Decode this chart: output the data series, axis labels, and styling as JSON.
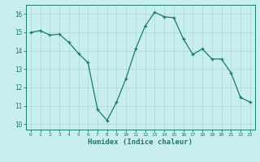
{
  "x": [
    0,
    1,
    2,
    3,
    4,
    5,
    6,
    7,
    8,
    9,
    10,
    11,
    12,
    13,
    14,
    15,
    16,
    17,
    18,
    19,
    20,
    21,
    22,
    23
  ],
  "y": [
    15.0,
    15.1,
    14.85,
    14.9,
    14.45,
    13.85,
    13.35,
    10.8,
    10.2,
    11.2,
    12.5,
    14.1,
    15.35,
    16.1,
    15.85,
    15.8,
    14.65,
    13.8,
    14.1,
    13.55,
    13.55,
    12.8,
    11.45,
    11.2
  ],
  "line_color": "#1a7a6e",
  "bg_color": "#c8eef0",
  "grid_color": "#aed8da",
  "ylabel_ticks": [
    10,
    11,
    12,
    13,
    14,
    15,
    16
  ],
  "xlabel": "Humidex (Indice chaleur)",
  "xlim": [
    -0.5,
    23.5
  ],
  "ylim": [
    9.7,
    16.5
  ],
  "title": ""
}
